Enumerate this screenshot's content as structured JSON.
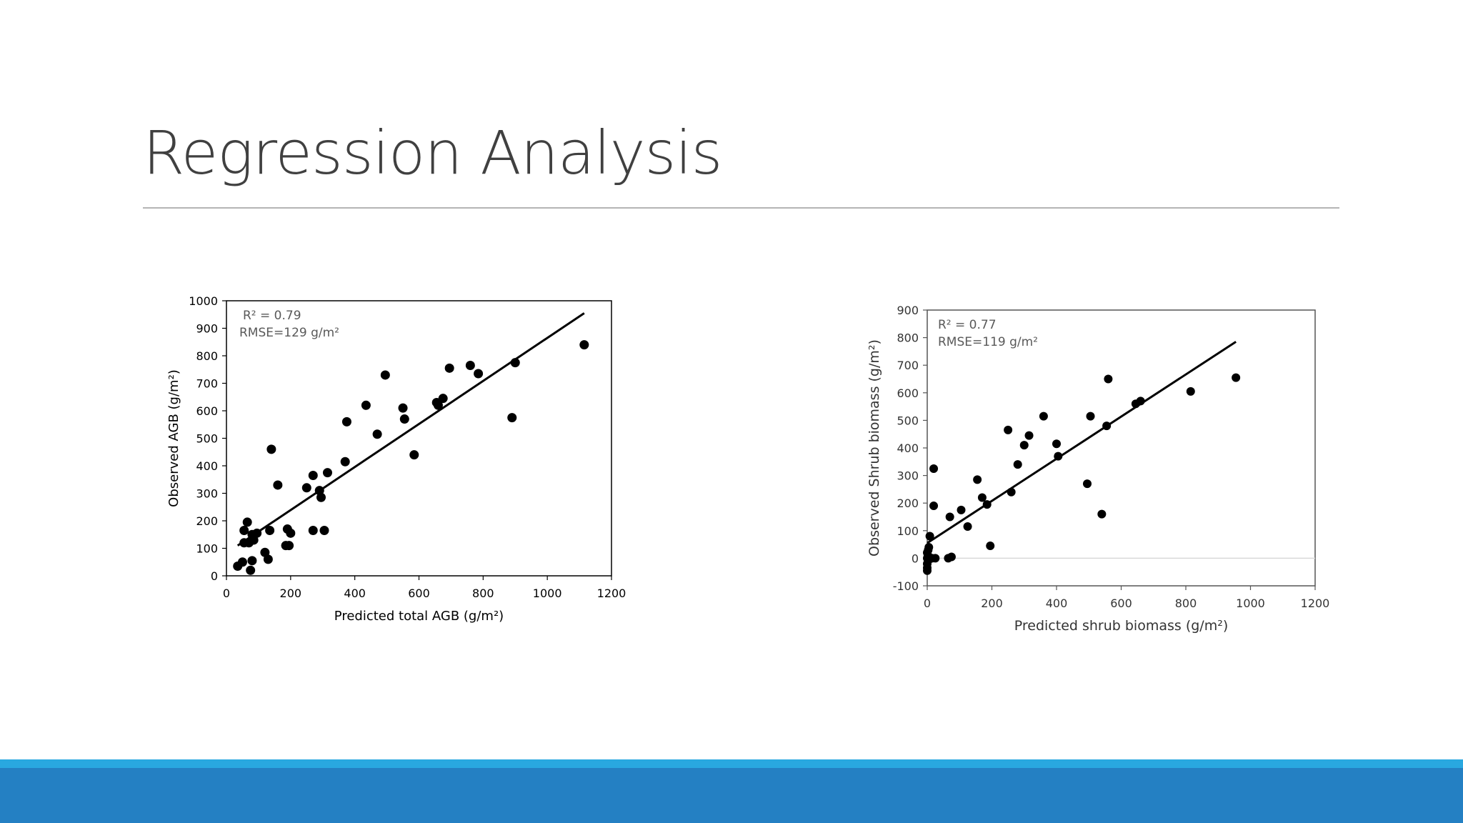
{
  "slide": {
    "title": "Regression Analysis"
  },
  "colors": {
    "title": "#404040",
    "rule": "#b5b5b5",
    "footer_accent": "#29a8e0",
    "footer_band": "#2480c3",
    "points": "#000000"
  },
  "chart_data": [
    {
      "type": "scatter",
      "title": "",
      "xlabel": "Predicted total AGB (g/m²)",
      "ylabel": "Observed AGB (g/m²)",
      "xlim": [
        0,
        1200
      ],
      "ylim": [
        0,
        1000
      ],
      "xticks": [
        0,
        200,
        400,
        600,
        800,
        1000,
        1200
      ],
      "yticks": [
        0,
        100,
        200,
        300,
        400,
        500,
        600,
        700,
        800,
        900,
        1000
      ],
      "grid": false,
      "annotations": [
        "R² = 0.79",
        "RMSE=129 g/m²"
      ],
      "trendline": {
        "x": [
          35,
          1115
        ],
        "y": [
          110,
          955
        ]
      },
      "points": {
        "x": [
          35,
          50,
          55,
          55,
          65,
          70,
          75,
          80,
          80,
          85,
          95,
          120,
          130,
          135,
          140,
          160,
          185,
          190,
          195,
          200,
          250,
          270,
          270,
          290,
          295,
          305,
          315,
          370,
          375,
          435,
          470,
          495,
          550,
          555,
          585,
          655,
          660,
          675,
          695,
          760,
          785,
          890,
          900,
          1115
        ],
        "y": [
          35,
          50,
          120,
          165,
          195,
          120,
          20,
          150,
          55,
          130,
          155,
          85,
          60,
          165,
          460,
          330,
          110,
          170,
          110,
          155,
          320,
          365,
          165,
          310,
          285,
          165,
          375,
          415,
          560,
          620,
          515,
          730,
          610,
          570,
          440,
          630,
          620,
          645,
          755,
          765,
          735,
          575,
          775,
          840
        ]
      }
    },
    {
      "type": "scatter",
      "title": "",
      "xlabel": "Predicted shrub biomass (g/m²)",
      "ylabel": "Observed Shrub biomass (g/m²)",
      "xlim": [
        0,
        1200
      ],
      "ylim": [
        -100,
        900
      ],
      "xticks": [
        0,
        200,
        400,
        600,
        800,
        1000,
        1200
      ],
      "yticks": [
        -100,
        0,
        100,
        200,
        300,
        400,
        500,
        600,
        700,
        800,
        900
      ],
      "grid": false,
      "annotations": [
        "R² = 0.77",
        "RMSE=119 g/m²"
      ],
      "trendline": {
        "x": [
          0,
          955
        ],
        "y": [
          55,
          785
        ]
      },
      "points": {
        "x": [
          0,
          0,
          0,
          0,
          0,
          2,
          3,
          5,
          5,
          5,
          8,
          10,
          15,
          20,
          20,
          25,
          65,
          70,
          75,
          105,
          125,
          155,
          170,
          185,
          195,
          250,
          260,
          280,
          300,
          315,
          360,
          400,
          405,
          495,
          505,
          540,
          555,
          560,
          645,
          660,
          815,
          955
        ],
        "y": [
          -45,
          -35,
          -20,
          0,
          20,
          10,
          30,
          -5,
          40,
          0,
          80,
          0,
          0,
          190,
          325,
          0,
          0,
          150,
          5,
          175,
          115,
          285,
          220,
          195,
          45,
          465,
          240,
          340,
          410,
          445,
          515,
          415,
          370,
          270,
          515,
          160,
          480,
          650,
          560,
          570,
          605,
          655
        ]
      }
    }
  ]
}
